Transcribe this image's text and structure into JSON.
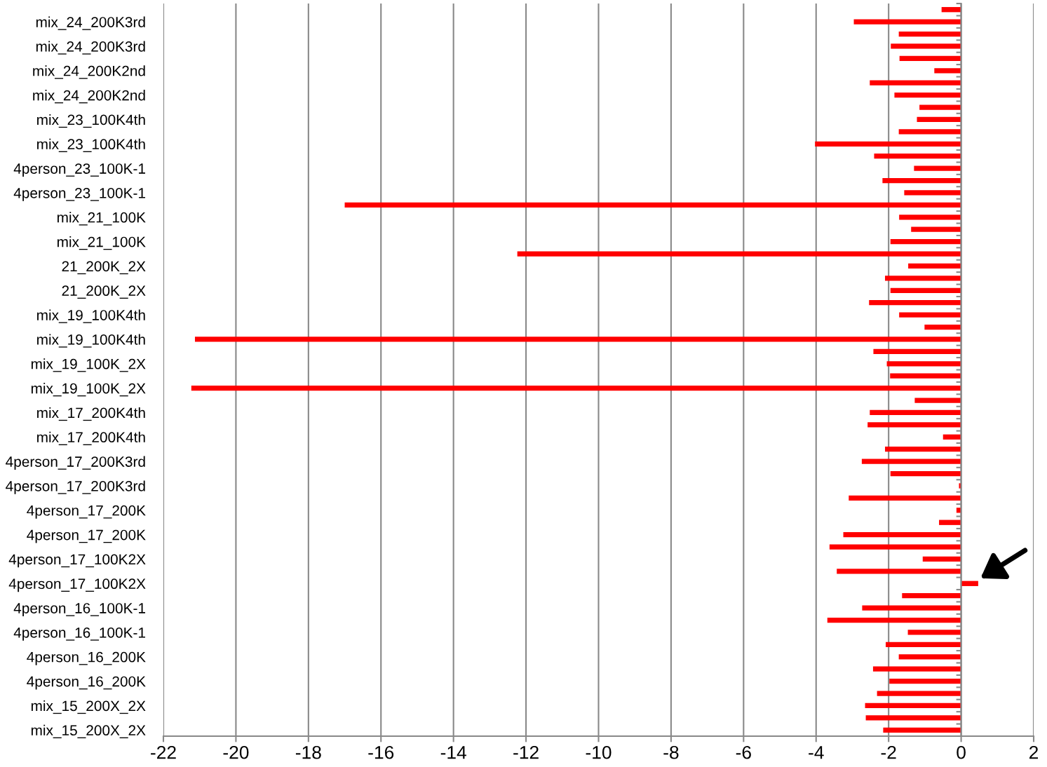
{
  "chart_data": {
    "type": "bar",
    "orientation": "horizontal",
    "categories": [
      null,
      "mix_24_200K3rd",
      null,
      "mix_24_200K3rd",
      null,
      "mix_24_200K2nd",
      null,
      "mix_24_200K2nd",
      null,
      "mix_23_100K4th",
      null,
      "mix_23_100K4th",
      null,
      "4person_23_100K-1",
      null,
      "4person_23_100K-1",
      null,
      "mix_21_100K",
      null,
      "mix_21_100K",
      null,
      "21_200K_2X",
      null,
      "21_200K_2X",
      null,
      "mix_19_100K4th",
      null,
      "mix_19_100K4th",
      null,
      "mix_19_100K_2X",
      null,
      "mix_19_100K_2X",
      null,
      "mix_17_200K4th",
      null,
      "mix_17_200K4th",
      null,
      "4person_17_200K3rd",
      null,
      "4person_17_200K3rd",
      null,
      "4person_17_200K",
      null,
      "4person_17_200K",
      null,
      "4person_17_100K2X",
      null,
      "4person_17_100K2X",
      null,
      "4person_16_100K-1",
      null,
      "4person_16_100K-1",
      null,
      "4person_16_200K",
      null,
      "4person_16_200K",
      null,
      "mix_15_200X_2X",
      null,
      "mix_15_200X_2X"
    ],
    "values": [
      -0.54,
      -2.96,
      -1.72,
      -1.94,
      -1.7,
      -0.74,
      -2.52,
      -1.84,
      -1.15,
      -1.22,
      -1.72,
      -4.03,
      -2.4,
      -1.3,
      -2.17,
      -1.57,
      -17.0,
      -1.71,
      -1.38,
      -1.95,
      -12.24,
      -1.46,
      -2.1,
      -1.95,
      -2.54,
      -1.71,
      -1.01,
      -21.13,
      -2.42,
      -2.05,
      -1.96,
      -21.23,
      -1.28,
      -2.52,
      -2.58,
      -0.5,
      -2.1,
      -2.74,
      -1.95,
      -0.06,
      -3.1,
      -0.13,
      -0.61,
      -3.25,
      -3.63,
      -1.06,
      -3.43,
      0.47,
      -1.63,
      -2.73,
      -3.69,
      -1.47,
      -2.08,
      -1.72,
      -2.43,
      -1.98,
      -2.32,
      -2.65,
      -2.63,
      -2.15
    ],
    "color": "#ff0000",
    "xlim": [
      -22,
      2
    ],
    "xticks": [
      -22,
      -20,
      -18,
      -16,
      -14,
      -12,
      -10,
      -8,
      -6,
      -4,
      -2,
      0,
      2
    ],
    "grid": "x"
  }
}
